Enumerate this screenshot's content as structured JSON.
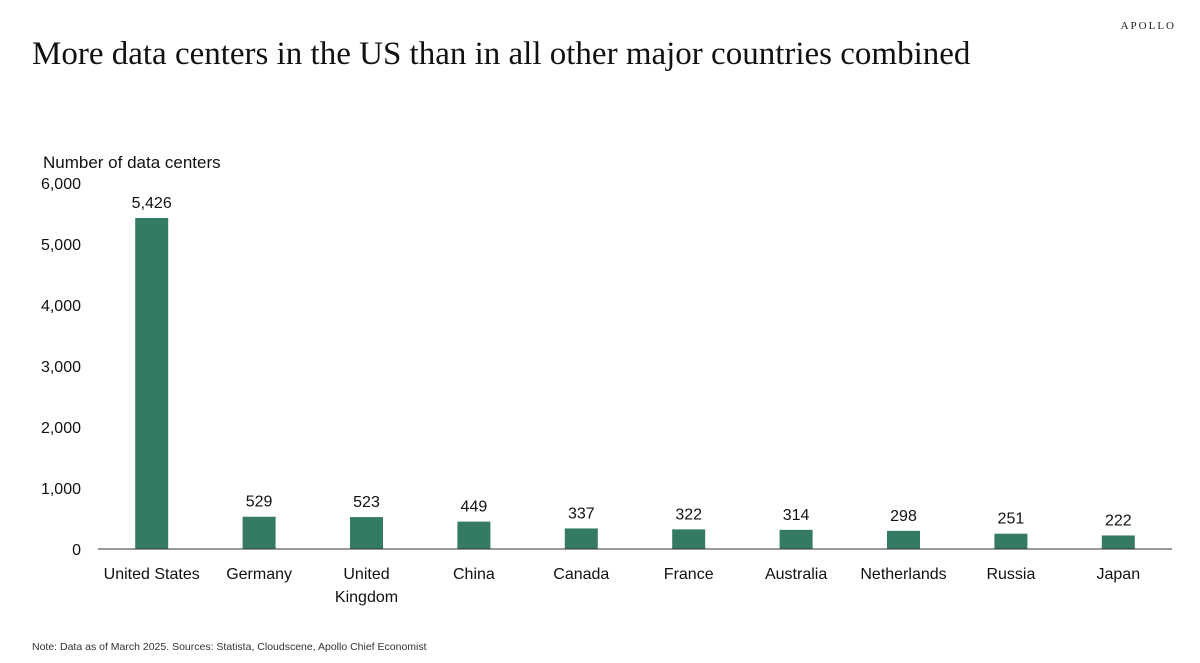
{
  "brand": "APOLLO",
  "note": "Note: Data as of March 2025. Sources: Statista, Cloudscene, Apollo Chief Economist",
  "colors": {
    "bar": "#357A64",
    "axis": "#333333",
    "text": "#111111"
  },
  "chart_data": {
    "type": "bar",
    "title": "More data centers in the US than in all other major countries combined",
    "ylabel": "Number of data centers",
    "xlabel": "",
    "categories": [
      [
        "United States"
      ],
      [
        "Germany"
      ],
      [
        "United",
        "Kingdom"
      ],
      [
        "China"
      ],
      [
        "Canada"
      ],
      [
        "France"
      ],
      [
        "Australia"
      ],
      [
        "Netherlands"
      ],
      [
        "Russia"
      ],
      [
        "Japan"
      ]
    ],
    "values": [
      5426,
      529,
      523,
      449,
      337,
      322,
      314,
      298,
      251,
      222
    ],
    "value_labels": [
      "5,426",
      "529",
      "523",
      "449",
      "337",
      "322",
      "314",
      "298",
      "251",
      "222"
    ],
    "ylim": [
      0,
      6000
    ],
    "yticks": [
      0,
      1000,
      2000,
      3000,
      4000,
      5000,
      6000
    ],
    "ytick_labels": [
      "0",
      "1,000",
      "2,000",
      "3,000",
      "4,000",
      "5,000",
      "6,000"
    ],
    "grid": false,
    "legend": "none"
  }
}
